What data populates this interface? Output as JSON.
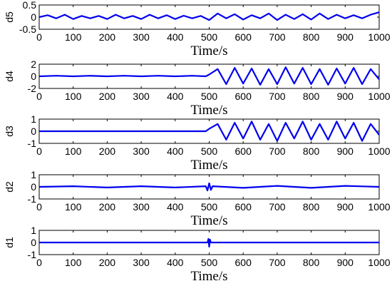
{
  "chart_data": [
    {
      "type": "line",
      "ylabel": "d5",
      "xlabel": "Time/s",
      "xlim": [
        0,
        1000
      ],
      "ylim": [
        -0.5,
        0.5
      ],
      "xticks": [
        "0",
        "100",
        "200",
        "300",
        "400",
        "500",
        "600",
        "700",
        "800",
        "900",
        "1000"
      ],
      "yticks": [
        "0.5",
        "0",
        "-0.5"
      ],
      "series_color": "#0000ee",
      "x": [
        0,
        25,
        50,
        75,
        100,
        125,
        150,
        175,
        200,
        225,
        250,
        275,
        300,
        325,
        350,
        375,
        400,
        425,
        450,
        475,
        500,
        525,
        550,
        575,
        600,
        625,
        650,
        675,
        700,
        725,
        750,
        775,
        800,
        825,
        850,
        875,
        900,
        925,
        950,
        975,
        1000
      ],
      "values": [
        0.0,
        0.08,
        -0.05,
        0.1,
        -0.08,
        0.05,
        -0.05,
        0.05,
        -0.08,
        0.1,
        -0.05,
        0.05,
        -0.08,
        0.1,
        -0.05,
        0.08,
        -0.08,
        0.06,
        -0.05,
        0.05,
        -0.12,
        0.15,
        -0.05,
        0.12,
        -0.1,
        0.08,
        -0.05,
        0.15,
        -0.12,
        0.1,
        -0.08,
        0.12,
        -0.1,
        0.15,
        -0.08,
        0.1,
        -0.05,
        0.08,
        -0.05,
        0.1,
        0.2
      ]
    },
    {
      "type": "line",
      "ylabel": "d4",
      "xlabel": "Time/s",
      "xlim": [
        0,
        1000
      ],
      "ylim": [
        -2,
        2
      ],
      "xticks": [
        "0",
        "100",
        "200",
        "300",
        "400",
        "500",
        "600",
        "700",
        "800",
        "900",
        "1000"
      ],
      "yticks": [
        "2",
        "0",
        "-2"
      ],
      "series_color": "#0000ee",
      "x": [
        0,
        50,
        100,
        150,
        200,
        250,
        300,
        350,
        400,
        450,
        490,
        500,
        525,
        550,
        575,
        600,
        625,
        650,
        675,
        700,
        725,
        750,
        775,
        800,
        825,
        850,
        875,
        900,
        925,
        950,
        975,
        1000
      ],
      "values": [
        0.0,
        0.1,
        0.0,
        0.1,
        0.0,
        0.1,
        0.0,
        0.1,
        0.0,
        0.1,
        0.0,
        0.3,
        1.2,
        -1.3,
        1.4,
        -1.2,
        1.3,
        -1.4,
        1.2,
        -1.3,
        1.5,
        -1.2,
        1.4,
        -1.3,
        1.2,
        -1.4,
        1.3,
        -1.2,
        1.4,
        -1.3,
        1.2,
        -0.5
      ]
    },
    {
      "type": "line",
      "ylabel": "d3",
      "xlabel": "Time/s",
      "xlim": [
        0,
        1000
      ],
      "ylim": [
        -1,
        1
      ],
      "xticks": [
        "0",
        "100",
        "200",
        "300",
        "400",
        "500",
        "600",
        "700",
        "800",
        "900",
        "1000"
      ],
      "yticks": [
        "1",
        "0",
        "-1"
      ],
      "series_color": "#0000ee",
      "x": [
        0,
        100,
        200,
        300,
        400,
        490,
        500,
        525,
        550,
        575,
        600,
        625,
        650,
        675,
        700,
        725,
        750,
        775,
        800,
        825,
        850,
        875,
        900,
        925,
        950,
        975,
        1000
      ],
      "values": [
        0.0,
        0.0,
        0.0,
        0.0,
        0.0,
        0.0,
        0.2,
        0.6,
        -0.7,
        0.7,
        -0.6,
        0.8,
        -0.7,
        0.6,
        -0.8,
        0.7,
        -0.6,
        0.8,
        -0.7,
        0.6,
        -0.7,
        0.8,
        -0.6,
        0.7,
        -0.8,
        0.6,
        -0.3
      ]
    },
    {
      "type": "line",
      "ylabel": "d2",
      "xlabel": "Time/s",
      "xlim": [
        0,
        1000
      ],
      "ylim": [
        -1,
        1
      ],
      "xticks": [
        "0",
        "100",
        "200",
        "300",
        "400",
        "500",
        "600",
        "700",
        "800",
        "900",
        "1000"
      ],
      "yticks": [
        "1",
        "0",
        "-1"
      ],
      "series_color": "#0000ee",
      "x": [
        0,
        100,
        200,
        300,
        400,
        490,
        495,
        500,
        505,
        510,
        600,
        700,
        800,
        900,
        1000
      ],
      "values": [
        0.0,
        0.05,
        -0.05,
        0.05,
        -0.05,
        0.05,
        -0.3,
        0.3,
        -0.25,
        0.05,
        -0.08,
        0.08,
        -0.08,
        0.08,
        0.0
      ]
    },
    {
      "type": "line",
      "ylabel": "d1",
      "xlabel": "Time/s",
      "xlim": [
        0,
        1000
      ],
      "ylim": [
        -1,
        1
      ],
      "xticks": [
        "0",
        "100",
        "200",
        "300",
        "400",
        "500",
        "600",
        "700",
        "800",
        "900",
        "1000"
      ],
      "yticks": [
        "1",
        "0",
        "-1"
      ],
      "series_color": "#0000ee",
      "x": [
        0,
        200,
        400,
        495,
        498,
        500,
        502,
        505,
        600,
        800,
        1000
      ],
      "values": [
        0.0,
        0.0,
        0.0,
        0.0,
        0.3,
        -0.35,
        0.25,
        0.0,
        0.0,
        0.0,
        0.0
      ]
    }
  ]
}
